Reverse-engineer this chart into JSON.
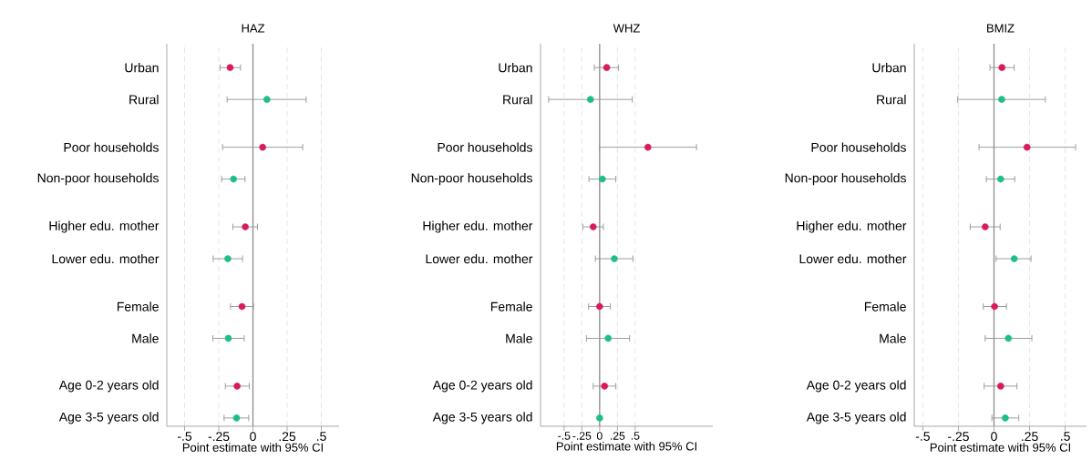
{
  "chart_data": [
    {
      "type": "scatter",
      "orientation": "horizontal",
      "title": "HAZ",
      "xlabel": "Point estimate with 95% CI",
      "categories": [
        "Urban",
        "Rural",
        "Poor households",
        "Non-poor households",
        "Higher edu. mother",
        "Lower edu. mother",
        "Female",
        "Male",
        "Age 0-2 years old",
        "Age 3-5 years old"
      ],
      "values": [
        -0.167,
        0.102,
        0.071,
        -0.142,
        -0.056,
        -0.184,
        -0.08,
        -0.18,
        -0.116,
        -0.12
      ],
      "errors": [
        [
          -0.24,
          -0.091
        ],
        [
          -0.189,
          0.389
        ],
        [
          -0.222,
          0.364
        ],
        [
          -0.229,
          -0.058
        ],
        [
          -0.147,
          0.033
        ],
        [
          -0.291,
          -0.076
        ],
        [
          -0.164,
          0.004
        ],
        [
          -0.293,
          -0.064
        ],
        [
          -0.202,
          -0.027
        ],
        [
          -0.211,
          -0.031
        ]
      ],
      "colors": [
        "#d81b60",
        "#1dbf85",
        "#d81b60",
        "#1dbf85",
        "#d81b60",
        "#1dbf85",
        "#d81b60",
        "#1dbf85",
        "#d81b60",
        "#1dbf85"
      ],
      "xlim": [
        -0.63,
        0.63
      ],
      "xticks": [
        {
          "value": -0.5,
          "label": "-.5"
        },
        {
          "value": -0.25,
          "label": "-.25"
        },
        0,
        {
          "value": 0.25,
          "label": ".25"
        },
        {
          "value": 0.5,
          "label": ".5"
        }
      ],
      "grid": "x",
      "marker": "circle",
      "ref_lines": [
        {
          "axis": "x",
          "value": 0
        }
      ]
    },
    {
      "type": "scatter",
      "orientation": "horizontal",
      "title": "WHZ",
      "xlabel": "Point estimate with 95% CI",
      "categories": [
        "Urban",
        "Rural",
        "Poor households",
        "Non-poor households",
        "Higher edu. mother",
        "Lower edu. mother",
        "Female",
        "Male",
        "Age 0-2 years old",
        "Age 3-5 years old"
      ],
      "values": [
        0.099,
        -0.129,
        0.678,
        0.039,
        -0.09,
        0.206,
        0.0,
        0.12,
        0.069,
        0.0
      ],
      "errors": [
        [
          -0.073,
          0.266
        ],
        [
          -0.717,
          0.459
        ],
        [
          -0.004,
          1.361
        ],
        [
          -0.15,
          0.227
        ],
        [
          -0.236,
          0.052
        ],
        [
          -0.06,
          0.468
        ],
        [
          -0.155,
          0.15
        ],
        [
          -0.185,
          0.421
        ],
        [
          -0.09,
          0.227
        ],
        null
      ],
      "colors": [
        "#d81b60",
        "#1dbf85",
        "#d81b60",
        "#1dbf85",
        "#d81b60",
        "#1dbf85",
        "#d81b60",
        "#1dbf85",
        "#d81b60",
        "#1dbf85"
      ],
      "xlim": [
        -0.83,
        1.59
      ],
      "xticks": [
        {
          "value": -0.5,
          "label": "-.5"
        },
        {
          "value": -0.25,
          "label": "-.25"
        },
        0,
        {
          "value": 0.25,
          "label": ".25"
        },
        {
          "value": 0.5,
          "label": ".5"
        }
      ],
      "grid": "x",
      "marker": "circle",
      "ref_lines": [
        {
          "axis": "x",
          "value": 0
        }
      ]
    },
    {
      "type": "scatter",
      "orientation": "horizontal",
      "title": "BMIZ",
      "xlabel": "Point estimate with 95% CI",
      "categories": [
        "Urban",
        "Rural",
        "Poor households",
        "Non-poor households",
        "Higher edu. mother",
        "Lower edu. mother",
        "Female",
        "Male",
        "Age 0-2 years old",
        "Age 3-5 years old"
      ],
      "values": [
        0.056,
        0.054,
        0.232,
        0.047,
        -0.062,
        0.142,
        0.004,
        0.101,
        0.047,
        0.079
      ],
      "errors": [
        [
          -0.028,
          0.142
        ],
        [
          -0.255,
          0.361
        ],
        [
          -0.105,
          0.573
        ],
        [
          -0.054,
          0.146
        ],
        [
          -0.167,
          0.043
        ],
        [
          0.015,
          0.26
        ],
        [
          -0.075,
          0.088
        ],
        [
          -0.062,
          0.266
        ],
        [
          -0.069,
          0.161
        ],
        [
          -0.015,
          0.174
        ]
      ],
      "colors": [
        "#d81b60",
        "#1dbf85",
        "#d81b60",
        "#1dbf85",
        "#d81b60",
        "#1dbf85",
        "#d81b60",
        "#1dbf85",
        "#d81b60",
        "#1dbf85"
      ],
      "xlim": [
        -0.56,
        0.65
      ],
      "xticks": [
        {
          "value": -0.5,
          "label": "-.5"
        },
        {
          "value": -0.25,
          "label": "-.25"
        },
        0,
        {
          "value": 0.25,
          "label": ".25"
        },
        {
          "value": 0.5,
          "label": ".5"
        }
      ],
      "grid": "x",
      "marker": "circle",
      "ref_lines": [
        {
          "axis": "x",
          "value": 0
        }
      ]
    }
  ]
}
